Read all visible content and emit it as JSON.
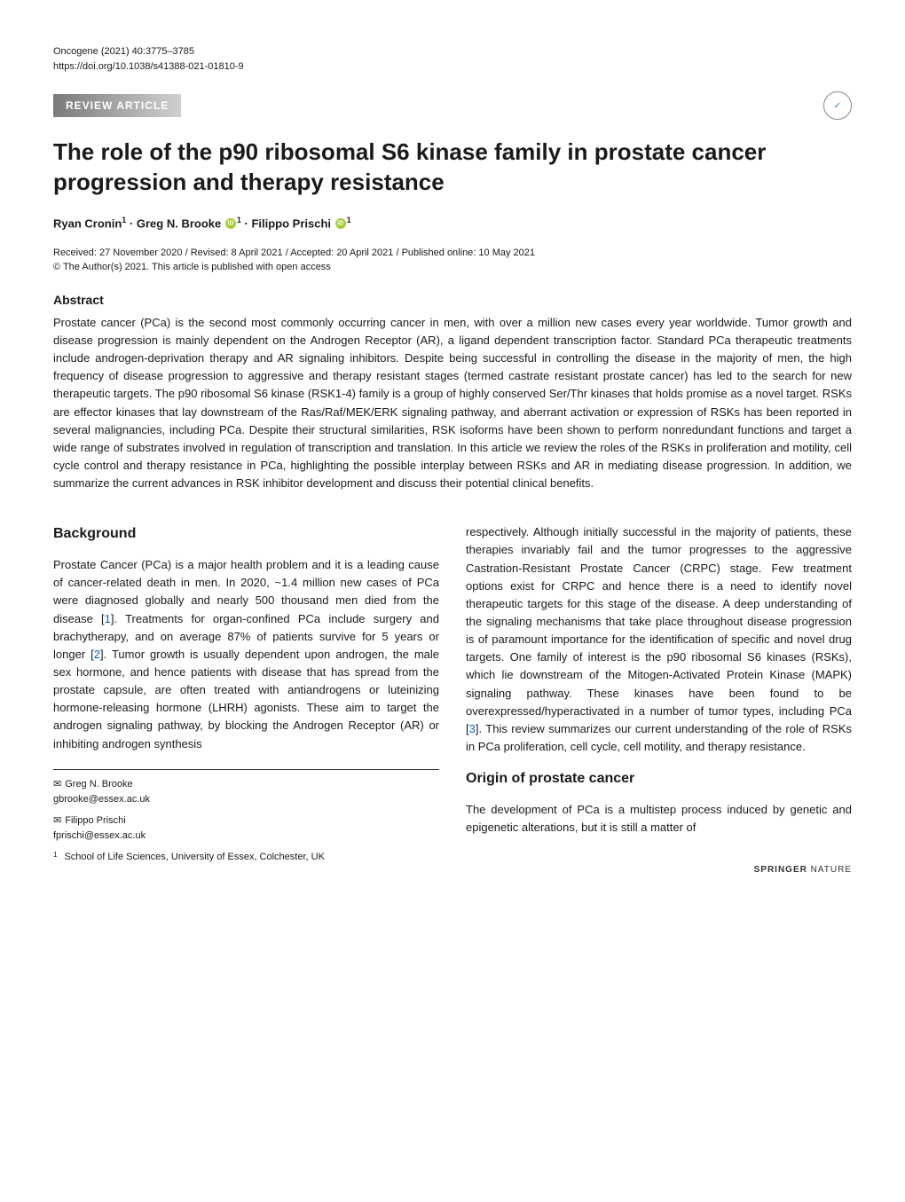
{
  "meta": {
    "journal_line": "Oncogene (2021) 40:3775–3785",
    "doi_line": "https://doi.org/10.1038/s41388-021-01810-9",
    "article_type": "REVIEW ARTICLE",
    "check_updates_label": "Check for updates"
  },
  "title": "The role of the p90 ribosomal S6 kinase family in prostate cancer progression and therapy resistance",
  "authors": {
    "a1_name": "Ryan Cronin",
    "a1_aff": "1",
    "a2_name": "Greg N. Brooke",
    "a2_aff": "1",
    "a3_name": "Filippo Prischi",
    "a3_aff": "1",
    "separator": " · "
  },
  "received": {
    "line1": "Received: 27 November 2020 / Revised: 8 April 2021 / Accepted: 20 April 2021 / Published online: 10 May 2021",
    "line2": "© The Author(s) 2021. This article is published with open access"
  },
  "abstract": {
    "heading": "Abstract",
    "text": "Prostate cancer (PCa) is the second most commonly occurring cancer in men, with over a million new cases every year worldwide. Tumor growth and disease progression is mainly dependent on the Androgen Receptor (AR), a ligand dependent transcription factor. Standard PCa therapeutic treatments include androgen-deprivation therapy and AR signaling inhibitors. Despite being successful in controlling the disease in the majority of men, the high frequency of disease progression to aggressive and therapy resistant stages (termed castrate resistant prostate cancer) has led to the search for new therapeutic targets. The p90 ribosomal S6 kinase (RSK1-4) family is a group of highly conserved Ser/Thr kinases that holds promise as a novel target. RSKs are effector kinases that lay downstream of the Ras/Raf/MEK/ERK signaling pathway, and aberrant activation or expression of RSKs has been reported in several malignancies, including PCa. Despite their structural similarities, RSK isoforms have been shown to perform nonredundant functions and target a wide range of substrates involved in regulation of transcription and translation. In this article we review the roles of the RSKs in proliferation and motility, cell cycle control and therapy resistance in PCa, highlighting the possible interplay between RSKs and AR in mediating disease progression. In addition, we summarize the current advances in RSK inhibitor development and discuss their potential clinical benefits."
  },
  "sections": {
    "background": {
      "heading": "Background",
      "p1a": "Prostate Cancer (PCa) is a major health problem and it is a leading cause of cancer-related death in men. In 2020, ~1.4 million new cases of PCa were diagnosed globally and nearly 500 thousand men died from the disease [",
      "cite1": "1",
      "p1b": "]. Treatments for organ-confined PCa include surgery and brachytherapy, and on average 87% of patients survive for 5 years or longer [",
      "cite2": "2",
      "p1c": "]. Tumor growth is usually dependent upon androgen, the male sex hormone, and hence patients with disease that has spread from the prostate capsule, are often treated with antiandrogens or luteinizing hormone-releasing hormone (LHRH) agonists. These aim to target the androgen signaling pathway, by blocking the Androgen Receptor (AR) or inhibiting androgen synthesis",
      "p2a": "respectively. Although initially successful in the majority of patients, these therapies invariably fail and the tumor progresses to the aggressive Castration-Resistant Prostate Cancer (CRPC) stage. Few treatment options exist for CRPC and hence there is a need to identify novel therapeutic targets for this stage of the disease. A deep understanding of the signaling mechanisms that take place throughout disease progression is of paramount importance for the identification of specific and novel drug targets. One family of interest is the p90 ribosomal S6 kinases (RSKs), which lie downstream of the Mitogen-Activated Protein Kinase (MAPK) signaling pathway. These kinases have been found to be overexpressed/hyperactivated in a number of tumor types, including PCa [",
      "cite3": "3",
      "p2b": "]. This review summarizes our current understanding of the role of RSKs in PCa proliferation, cell cycle, cell motility, and therapy resistance."
    },
    "origin": {
      "heading": "Origin of prostate cancer",
      "p1": "The development of PCa is a multistep process induced by genetic and epigenetic alterations, but it is still a matter of"
    }
  },
  "correspondence": {
    "a1_name": "Greg N. Brooke",
    "a1_email": "gbrooke@essex.ac.uk",
    "a2_name": "Filippo Prischi",
    "a2_email": "fprischi@essex.ac.uk"
  },
  "affiliation": {
    "num": "1",
    "text": "School of Life Sciences, University of Essex, Colchester, UK"
  },
  "footer": {
    "publisher_a": "SPRINGER",
    "publisher_b": " NATURE"
  }
}
